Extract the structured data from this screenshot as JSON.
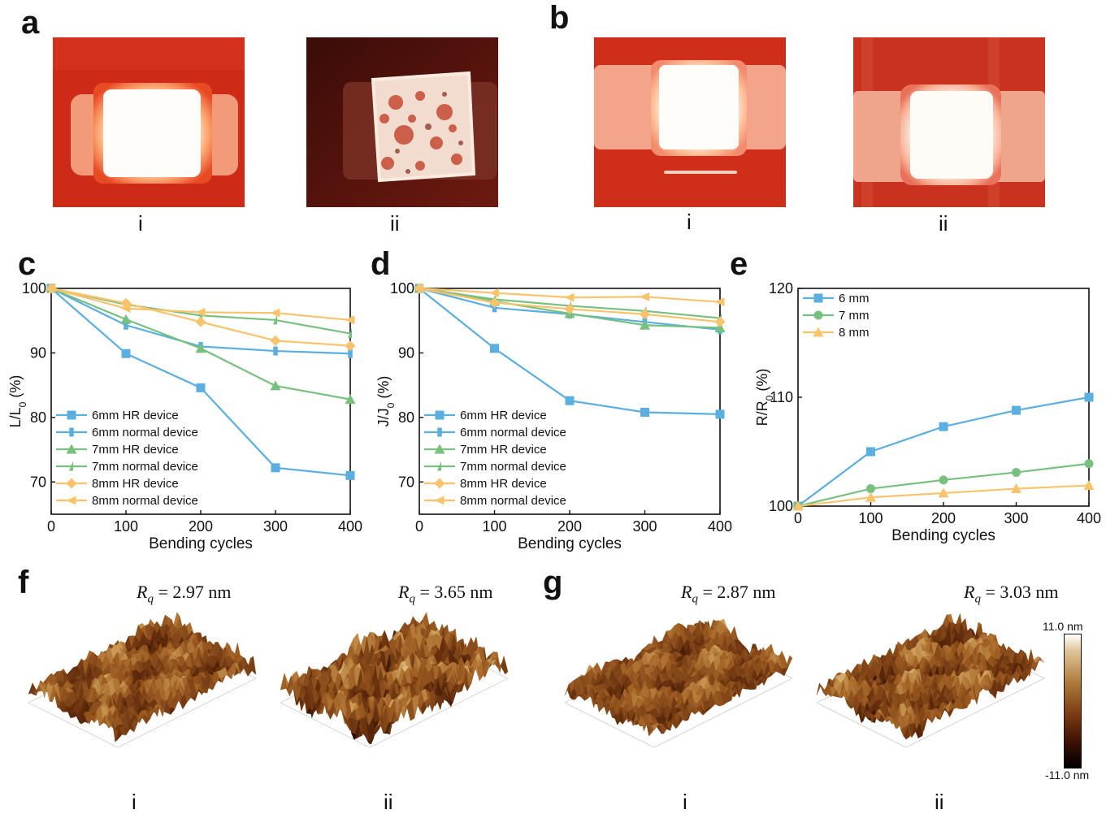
{
  "panels": {
    "a": {
      "letter": "a",
      "sub": [
        "i",
        "ii"
      ]
    },
    "b": {
      "letter": "b",
      "sub": [
        "i",
        "ii"
      ]
    },
    "c": {
      "letter": "c"
    },
    "d": {
      "letter": "d"
    },
    "e": {
      "letter": "e"
    },
    "f": {
      "letter": "f",
      "sub": [
        "i",
        "ii"
      ],
      "rq": [
        "2.97 nm",
        "3.65 nm"
      ]
    },
    "g": {
      "letter": "g",
      "sub": [
        "i",
        "ii"
      ],
      "rq": [
        "2.87 nm",
        "3.03 nm"
      ]
    }
  },
  "rq_symbol": "R",
  "rq_subscript": "q",
  "rq_equals": " = ",
  "colorbar": {
    "max_label": "11.0 nm",
    "min_label": "-11.0 nm"
  },
  "colors": {
    "blue": "#5aaee0",
    "green": "#77c07e",
    "orange": "#f8c36b",
    "photo_red": "#cc2a17",
    "afm_dark": "#3a1a0a",
    "afm_light": "#e8d6a8"
  },
  "chart_data": [
    {
      "id": "c",
      "type": "line",
      "xlabel": "Bending cycles",
      "ylabel": "L/L",
      "ylabel_sub": "0",
      "ylabel_unit": " (%)",
      "xlim": [
        0,
        400
      ],
      "ylim": [
        65,
        100
      ],
      "xticks": [
        0,
        100,
        200,
        300,
        400
      ],
      "yticks": [
        70,
        80,
        90,
        100
      ],
      "legend_position": "bottom-left",
      "x": [
        0,
        100,
        200,
        300,
        400
      ],
      "series": [
        {
          "name": "6mm HR device",
          "color": "#5aaee0",
          "marker": "square",
          "values": [
            100,
            89.9,
            84.6,
            72.2,
            71.0
          ]
        },
        {
          "name": "6mm normal device",
          "color": "#5aaee0",
          "marker": "half-square",
          "values": [
            100,
            94.3,
            91.0,
            90.3,
            89.9
          ]
        },
        {
          "name": "7mm HR device",
          "color": "#77c07e",
          "marker": "triangle",
          "values": [
            100,
            95.2,
            90.7,
            84.9,
            82.8
          ]
        },
        {
          "name": "7mm normal device",
          "color": "#77c07e",
          "marker": "half-triangle",
          "values": [
            100,
            97.5,
            95.8,
            95.1,
            93.0
          ]
        },
        {
          "name": "8mm HR device",
          "color": "#f8c36b",
          "marker": "diamond",
          "values": [
            100,
            97.7,
            94.8,
            91.9,
            91.1
          ]
        },
        {
          "name": "8mm normal device",
          "color": "#f8c36b",
          "marker": "left-triangle",
          "values": [
            100,
            96.9,
            96.3,
            96.2,
            95.1
          ]
        }
      ]
    },
    {
      "id": "d",
      "type": "line",
      "xlabel": "Bending cycles",
      "ylabel": "J/J",
      "ylabel_sub": "0",
      "ylabel_unit": " (%)",
      "xlim": [
        0,
        400
      ],
      "ylim": [
        65,
        100
      ],
      "xticks": [
        0,
        100,
        200,
        300,
        400
      ],
      "yticks": [
        70,
        80,
        90,
        100
      ],
      "legend_position": "bottom-left",
      "x": [
        0,
        100,
        200,
        300,
        400
      ],
      "series": [
        {
          "name": "6mm HR device",
          "color": "#5aaee0",
          "marker": "square",
          "values": [
            100,
            90.7,
            82.6,
            80.8,
            80.5
          ]
        },
        {
          "name": "6mm normal device",
          "color": "#5aaee0",
          "marker": "half-square",
          "values": [
            100,
            97.0,
            96.0,
            94.8,
            93.6
          ]
        },
        {
          "name": "7mm HR device",
          "color": "#77c07e",
          "marker": "triangle",
          "values": [
            100,
            98.0,
            96.1,
            94.3,
            93.9
          ]
        },
        {
          "name": "7mm normal device",
          "color": "#77c07e",
          "marker": "half-triangle",
          "values": [
            100,
            98.3,
            97.3,
            96.5,
            95.4
          ]
        },
        {
          "name": "8mm HR device",
          "color": "#f8c36b",
          "marker": "diamond",
          "values": [
            100,
            97.8,
            96.8,
            96.0,
            94.8
          ]
        },
        {
          "name": "8mm normal device",
          "color": "#f8c36b",
          "marker": "left-triangle",
          "values": [
            100,
            99.3,
            98.6,
            98.7,
            97.9
          ]
        }
      ]
    },
    {
      "id": "e",
      "type": "line",
      "xlabel": "Bending cycles",
      "ylabel": "R/R",
      "ylabel_sub": "0",
      "ylabel_unit": " (%)",
      "xlim": [
        0,
        400
      ],
      "ylim": [
        100,
        120
      ],
      "xticks": [
        0,
        100,
        200,
        300,
        400
      ],
      "yticks": [
        100,
        110,
        120
      ],
      "legend_position": "top-left",
      "x": [
        0,
        100,
        200,
        300,
        400
      ],
      "series": [
        {
          "name": "6 mm",
          "color": "#5aaee0",
          "marker": "square",
          "values": [
            100,
            105.0,
            107.3,
            108.8,
            110.0
          ]
        },
        {
          "name": "7 mm",
          "color": "#77c07e",
          "marker": "circle",
          "values": [
            100,
            101.6,
            102.4,
            103.1,
            103.9
          ]
        },
        {
          "name": "8 mm",
          "color": "#f8c36b",
          "marker": "triangle",
          "values": [
            100,
            100.8,
            101.2,
            101.6,
            101.9
          ]
        }
      ]
    }
  ]
}
